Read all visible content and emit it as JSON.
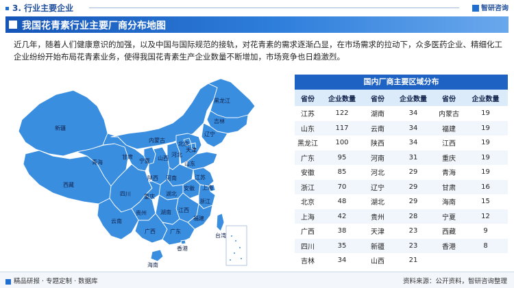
{
  "header": {
    "section": "3. 行业主要企业",
    "logo": "智研咨询"
  },
  "title": "我国花青素行业主要厂商分布地图",
  "intro": "近几年，随着人们健康意识的加强，以及中国与国际规范的接轨，对花青素的需求逐渐凸显，在市场需求的拉动下，众多医药企业、精细化工企业纷纷开始布局花青素业务，使得我国花青素生产企业数量不断增加，市场竞争也日趋激烈。",
  "map": {
    "labels": {
      "heilongjiang": "黑龙江",
      "jilin": "吉林",
      "liaoning": "辽宁",
      "neimenggu": "内蒙古",
      "xinjiang": "新疆",
      "xizang": "西藏",
      "qinghai": "青海",
      "gansu": "甘肃",
      "ningxia": "宁夏",
      "shanxi": "山西",
      "hebei": "河北",
      "beijing": "北京",
      "tianjin": "天津",
      "shandong": "山东",
      "henan": "河南",
      "shaanxi": "陕西",
      "sichuan": "四川",
      "chongqing": "重庆",
      "hubei": "湖北",
      "anhui": "安徽",
      "jiangsu": "江苏",
      "shanghai": "上海",
      "zhejiang": "浙江",
      "hunan": "湖南",
      "jiangxi": "江西",
      "guizhou": "贵州",
      "yunnan": "云南",
      "guangxi": "广西",
      "guangdong": "广东",
      "fujian": "福建",
      "taiwan": "台湾",
      "xianggang": "香港",
      "hainan": "海南"
    },
    "colors": {
      "land": "#3a8ee0",
      "border": "#ffffff"
    }
  },
  "table": {
    "title": "国内厂商主要区域分布",
    "headers": [
      "省份",
      "企业数量",
      "省份",
      "企业数量",
      "省份",
      "企业数量"
    ],
    "rows": [
      [
        "江苏",
        "122",
        "湖南",
        "34",
        "内蒙古",
        "19"
      ],
      [
        "山东",
        "117",
        "云南",
        "34",
        "福建",
        "19"
      ],
      [
        "黑龙江",
        "100",
        "陕西",
        "34",
        "江西",
        "19"
      ],
      [
        "广东",
        "95",
        "河南",
        "31",
        "重庆",
        "19"
      ],
      [
        "安徽",
        "85",
        "河北",
        "29",
        "青海",
        "19"
      ],
      [
        "浙江",
        "70",
        "辽宁",
        "29",
        "甘肃",
        "16"
      ],
      [
        "北京",
        "48",
        "湖北",
        "29",
        "海南",
        "15"
      ],
      [
        "上海",
        "42",
        "贵州",
        "28",
        "宁夏",
        "12"
      ],
      [
        "广西",
        "38",
        "天津",
        "23",
        "西藏",
        "9"
      ],
      [
        "四川",
        "35",
        "新疆",
        "23",
        "香港",
        "8"
      ],
      [
        "吉林",
        "34",
        "山西",
        "21",
        "",
        ""
      ]
    ]
  },
  "footer": {
    "left": "精品研报 · 专题定制 · 数据库",
    "right": "资料来源：公开资料，智研咨询整理"
  }
}
